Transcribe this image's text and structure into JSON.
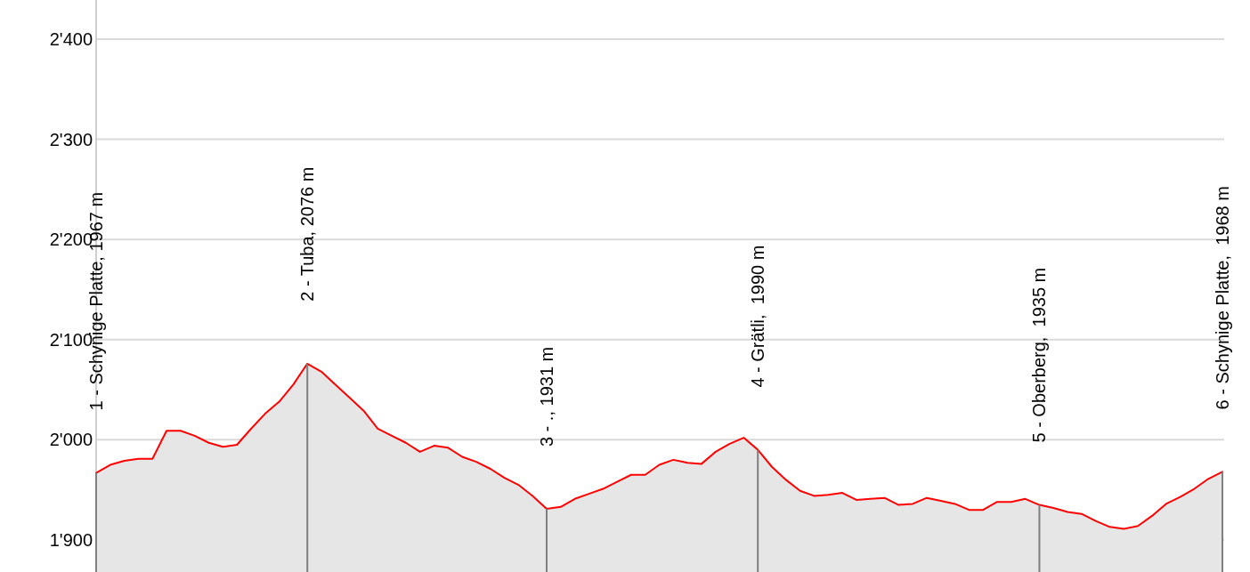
{
  "chart_data": {
    "type": "area",
    "categories": [
      "1 - Schynige Platte, 1967 m",
      null,
      null,
      null,
      null,
      null,
      null,
      null,
      null,
      null,
      null,
      null,
      null,
      null,
      null,
      "2 - Tuba, 2076 m",
      null,
      null,
      null,
      null,
      null,
      null,
      null,
      null,
      null,
      null,
      null,
      null,
      null,
      null,
      null,
      null,
      "3 - ., 1931 m",
      null,
      null,
      null,
      null,
      null,
      null,
      null,
      null,
      null,
      null,
      null,
      null,
      null,
      null,
      "4 - Grätli,  1990 m",
      null,
      null,
      null,
      null,
      null,
      null,
      null,
      null,
      null,
      null,
      null,
      null,
      null,
      null,
      null,
      null,
      null,
      null,
      null,
      "5 - Oberberg,  1935 m",
      null,
      null,
      null,
      null,
      null,
      null,
      null,
      null,
      null,
      null,
      null,
      null,
      "6 - Schynige Platte,  1968 m"
    ],
    "series": [
      {
        "type": "bar",
        "color": "#808080",
        "values": [
          1967,
          null,
          null,
          null,
          null,
          null,
          null,
          null,
          null,
          null,
          null,
          null,
          null,
          null,
          null,
          2076,
          null,
          null,
          null,
          null,
          null,
          null,
          null,
          null,
          null,
          null,
          null,
          null,
          null,
          null,
          null,
          null,
          1931,
          null,
          null,
          null,
          null,
          null,
          null,
          null,
          null,
          null,
          null,
          null,
          null,
          null,
          null,
          1990,
          null,
          null,
          null,
          null,
          null,
          null,
          null,
          null,
          null,
          null,
          null,
          null,
          null,
          null,
          null,
          null,
          null,
          null,
          null,
          1935,
          null,
          null,
          null,
          null,
          null,
          null,
          null,
          null,
          null,
          null,
          null,
          null,
          1968
        ]
      },
      {
        "color": "#ff0000",
        "values": [
          1967,
          1975,
          1979,
          1981,
          1981,
          2009,
          2009,
          2004,
          1997,
          1993,
          1995,
          2011,
          2026,
          2038,
          2055,
          2076,
          2068,
          2055,
          2042,
          2029,
          2011,
          2004,
          1997,
          1988,
          1994,
          1992,
          1983,
          1978,
          1971,
          1962,
          1955,
          1944,
          1931,
          1933,
          1941,
          1946,
          1951,
          1958,
          1965,
          1965,
          1975,
          1980,
          1977,
          1976,
          1988,
          1996,
          2002,
          1990,
          1973,
          1960,
          1949,
          1944,
          1945,
          1947,
          1940,
          1941,
          1942,
          1935,
          1936,
          1942,
          1939,
          1936,
          1930,
          1930,
          1938,
          1938,
          1941,
          1935,
          1932,
          1928,
          1926,
          1919,
          1913,
          1911,
          1914,
          1924,
          1936,
          1943,
          1951,
          1961,
          1968
        ]
      }
    ],
    "ylim": [
      1868,
      2439
    ],
    "yticks": [
      {
        "value": 1900,
        "label": "1'900"
      },
      {
        "value": 2000,
        "label": "2'000"
      },
      {
        "value": 2100,
        "label": "2'100"
      },
      {
        "value": 2200,
        "label": "2'200"
      },
      {
        "value": 2300,
        "label": "2'300"
      },
      {
        "value": 2400,
        "label": "2'400"
      }
    ],
    "grid": "y"
  }
}
